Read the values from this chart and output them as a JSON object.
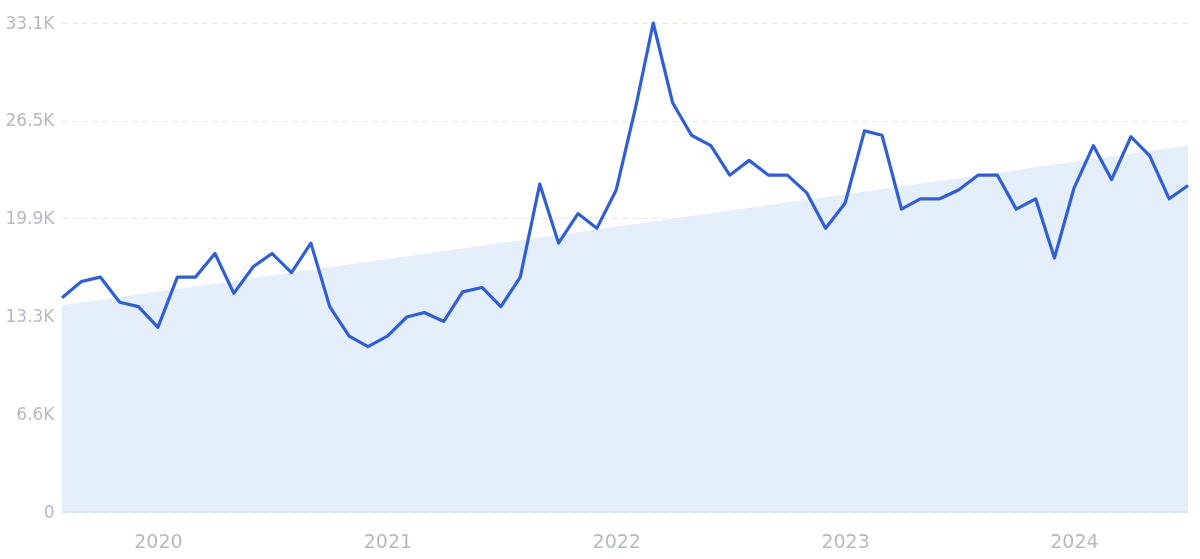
{
  "chart_data": {
    "type": "line",
    "x": [
      "2019-08",
      "2019-09",
      "2019-10",
      "2019-11",
      "2019-12",
      "2020-01",
      "2020-02",
      "2020-03",
      "2020-04",
      "2020-05",
      "2020-06",
      "2020-07",
      "2020-08",
      "2020-09",
      "2020-10",
      "2020-11",
      "2020-12",
      "2021-01",
      "2021-02",
      "2021-03",
      "2021-04",
      "2021-05",
      "2021-06",
      "2021-07",
      "2021-08",
      "2021-09",
      "2021-10",
      "2021-11",
      "2021-12",
      "2022-01",
      "2022-02",
      "2022-03",
      "2022-04",
      "2022-05",
      "2022-06",
      "2022-07",
      "2022-08",
      "2022-09",
      "2022-10",
      "2022-11",
      "2022-12",
      "2023-01",
      "2023-02",
      "2023-03",
      "2023-04",
      "2023-05",
      "2023-06",
      "2023-07",
      "2023-08",
      "2023-09",
      "2023-10",
      "2023-11",
      "2023-12",
      "2024-01",
      "2024-02",
      "2024-03",
      "2024-04",
      "2024-05",
      "2024-06",
      "2024-07"
    ],
    "series": [
      {
        "type": "area",
        "color": "#e2ecfb",
        "x": [
          "2019-08",
          "2024-07"
        ],
        "values": [
          14000,
          24800
        ]
      },
      {
        "color": "#2f5fd3",
        "values": [
          14500,
          15600,
          15900,
          14200,
          13900,
          12500,
          15900,
          15900,
          17500,
          14800,
          16600,
          17500,
          16200,
          18200,
          13900,
          11900,
          11200,
          11900,
          13200,
          13500,
          12900,
          14900,
          15200,
          13900,
          15900,
          22200,
          18200,
          20200,
          19200,
          21800,
          27400,
          33100,
          27700,
          25500,
          24800,
          22800,
          23800,
          22800,
          22800,
          21600,
          19200,
          20900,
          25800,
          25500,
          20500,
          21200,
          21200,
          21800,
          22800,
          22800,
          20500,
          21200,
          17200,
          21900,
          24800,
          22500,
          25400,
          24100,
          21200,
          22100
        ]
      }
    ],
    "xlim": [
      "2019-08",
      "2024-07"
    ],
    "xticks": [
      {
        "value": "2020-01",
        "label": "2020"
      },
      {
        "value": "2021-01",
        "label": "2021"
      },
      {
        "value": "2022-01",
        "label": "2022"
      },
      {
        "value": "2023-01",
        "label": "2023"
      },
      {
        "value": "2024-01",
        "label": "2024"
      }
    ],
    "ylim": [
      0,
      33100
    ],
    "yticks": [
      0,
      {
        "value": 6620,
        "label": "6.6K"
      },
      {
        "value": 13250,
        "label": "13.3K"
      },
      {
        "value": 19870,
        "label": "19.9K"
      },
      {
        "value": 26480,
        "label": "26.5K"
      },
      {
        "value": 33100,
        "label": "33.1K"
      }
    ],
    "grid": "y",
    "marker": "none",
    "line_style": "solid"
  }
}
